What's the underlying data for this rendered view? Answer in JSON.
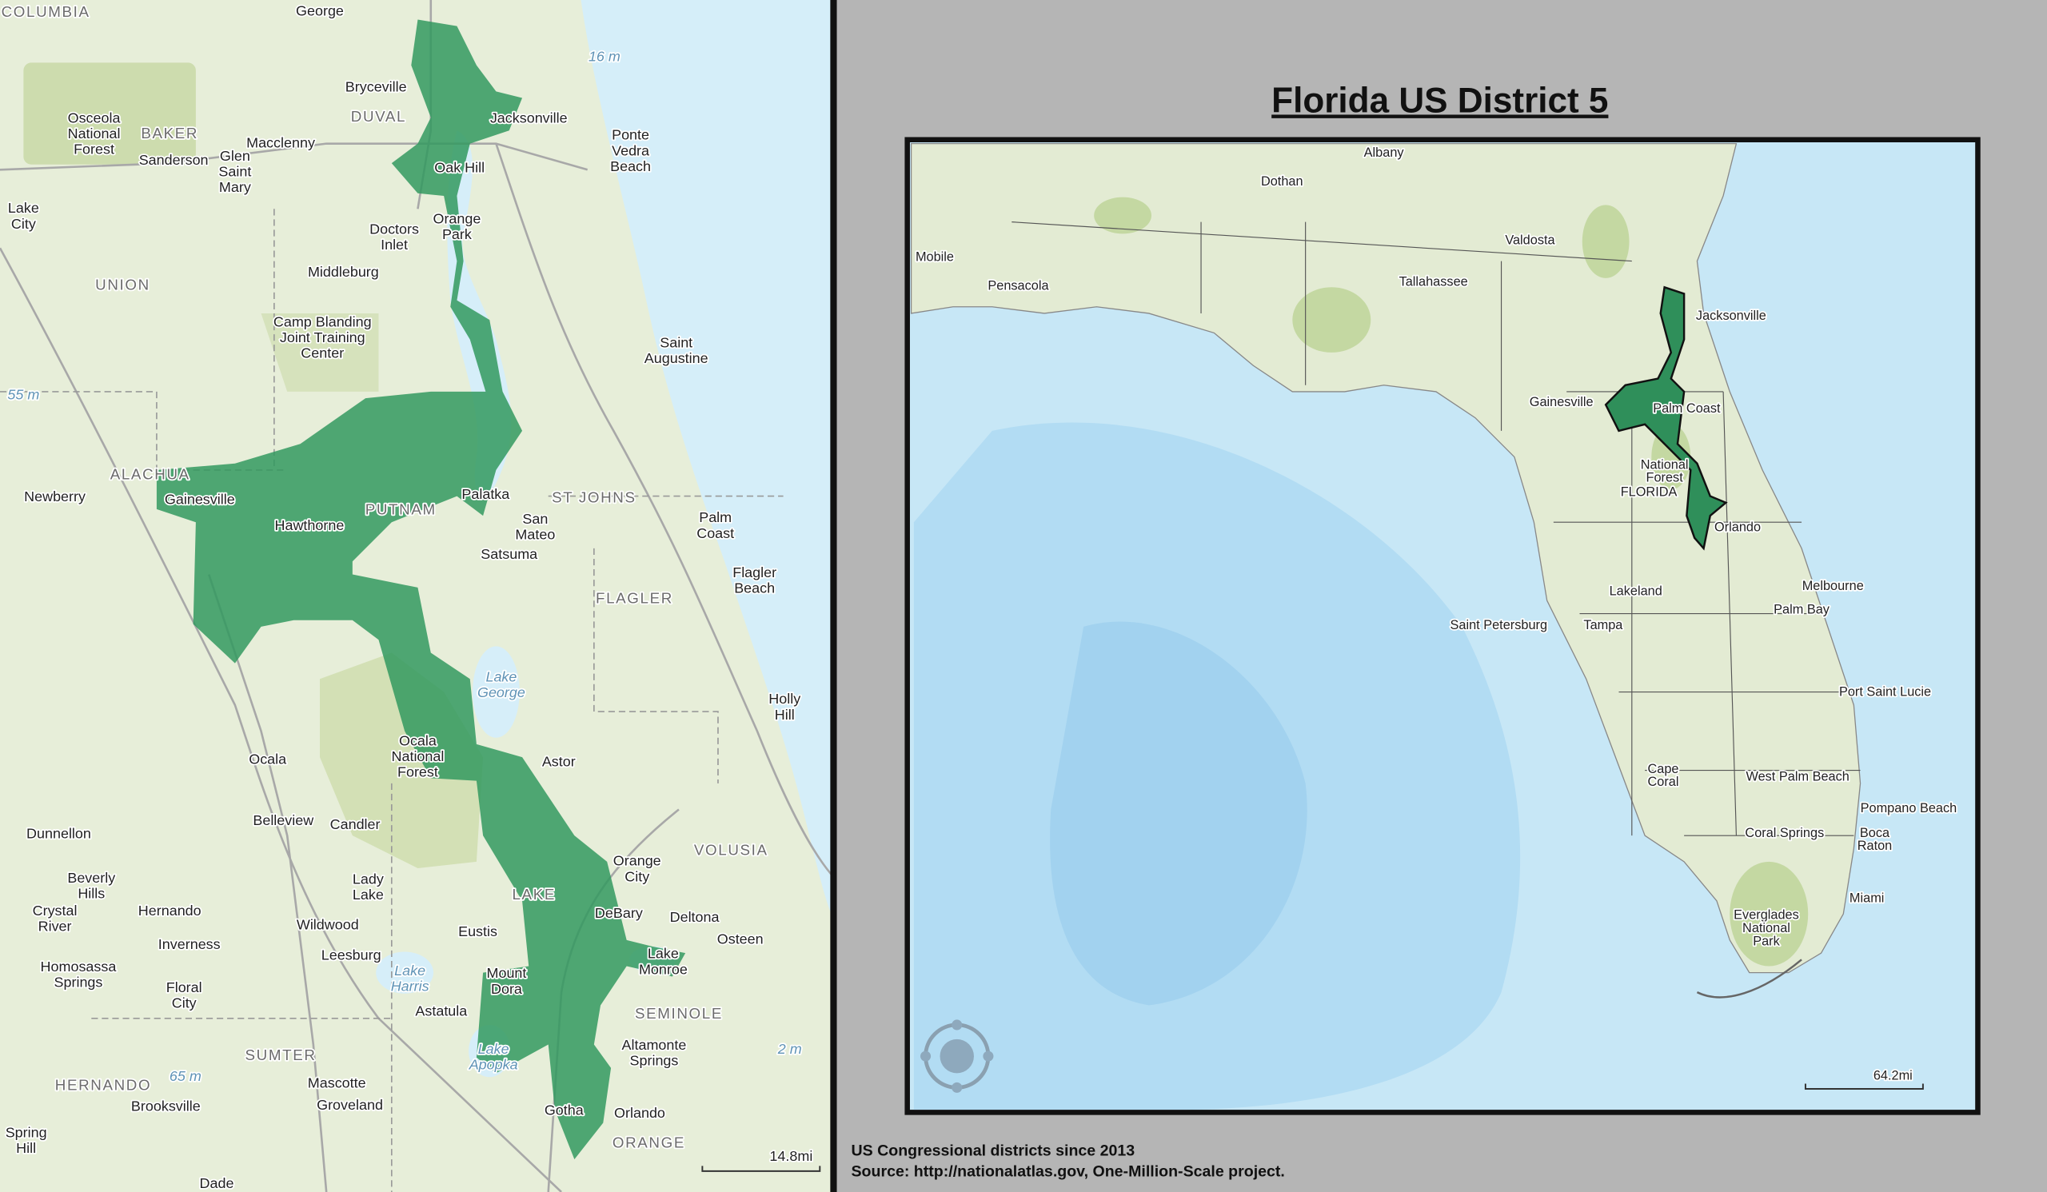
{
  "title": "Florida US District 5",
  "left_map": {
    "scale": "14.8mi",
    "labels": [
      [
        "COLUMBIA"
      ],
      [
        "George"
      ],
      [
        "Osceola",
        "National",
        "Forest"
      ],
      [
        "BAKER"
      ],
      [
        "Bryceville"
      ],
      [
        "DUVAL"
      ],
      [
        "Jacksonville"
      ],
      [
        "16 m"
      ],
      [
        "Ponte",
        "Vedra",
        "Beach"
      ],
      [
        "Macclenny"
      ],
      [
        "Sanderson"
      ],
      [
        "Glen",
        "Saint",
        "Mary"
      ],
      [
        "Oak Hill"
      ],
      [
        "Lake",
        "City"
      ],
      [
        "Orange",
        "Park"
      ],
      [
        "Doctors",
        "Inlet"
      ],
      [
        "Middleburg"
      ],
      [
        "UNION"
      ],
      [
        "Camp Blanding",
        "Joint Training",
        "Center"
      ],
      [
        "Saint",
        "Augustine"
      ],
      [
        "55 m"
      ],
      [
        "ALACHUA"
      ],
      [
        "Newberry"
      ],
      [
        "Gainesville"
      ],
      [
        "PUTNAM"
      ],
      [
        "Palatka"
      ],
      [
        "ST JOHNS"
      ],
      [
        "Palm",
        "Coast"
      ],
      [
        "Hawthorne"
      ],
      [
        "San",
        "Mateo"
      ],
      [
        "Satsuma"
      ],
      [
        "Flagler",
        "Beach"
      ],
      [
        "FLAGLER"
      ],
      [
        "Lake",
        "George"
      ],
      [
        "Holly",
        "Hill"
      ],
      [
        "Ocala",
        "National",
        "Forest"
      ],
      [
        "Astor"
      ],
      [
        "Ocala"
      ],
      [
        "Belleview"
      ],
      [
        "Candler"
      ],
      [
        "Dunnellon"
      ],
      [
        "Orange",
        "City"
      ],
      [
        "VOLUSIA"
      ],
      [
        "Beverly",
        "Hills"
      ],
      [
        "Lady",
        "Lake"
      ],
      [
        "Hernando"
      ],
      [
        "Crystal",
        "River"
      ],
      [
        "LAKE"
      ],
      [
        "DeBary"
      ],
      [
        "Deltona"
      ],
      [
        "Wildwood"
      ],
      [
        "Eustis"
      ],
      [
        "Osteen"
      ],
      [
        "Inverness"
      ],
      [
        "Leesburg"
      ],
      [
        "Lake",
        "Monroe"
      ],
      [
        "Homosassa",
        "Springs"
      ],
      [
        "Floral",
        "City"
      ],
      [
        "Lake",
        "Harris"
      ],
      [
        "Mount",
        "Dora"
      ],
      [
        "Astatula"
      ],
      [
        "SEMINOLE"
      ],
      [
        "Altamonte",
        "Springs"
      ],
      [
        "Lake",
        "Apopka"
      ],
      [
        "2 m"
      ],
      [
        "SUMTER"
      ],
      [
        "HERNANDO"
      ],
      [
        "65 m"
      ],
      [
        "Mascotte"
      ],
      [
        "Groveland"
      ],
      [
        "Brooksville"
      ],
      [
        "Gotha"
      ],
      [
        "Orlando"
      ],
      [
        "Spring",
        "Hill"
      ],
      [
        "ORANGE"
      ],
      [
        "Dade"
      ]
    ]
  },
  "right_map": {
    "scale": "64.2mi",
    "labels": [
      [
        "Albany"
      ],
      [
        "Dothan"
      ],
      [
        "Valdosta"
      ],
      [
        "Mobile"
      ],
      [
        "Pensacola"
      ],
      [
        "Tallahassee"
      ],
      [
        "Jacksonville"
      ],
      [
        "Gainesville"
      ],
      [
        "Palm Coast"
      ],
      [
        "National",
        "Forest"
      ],
      [
        "FLORIDA"
      ],
      [
        "Orlando"
      ],
      [
        "Melbourne"
      ],
      [
        "Lakeland"
      ],
      [
        "Palm Bay"
      ],
      [
        "Saint Petersburg"
      ],
      [
        "Tampa"
      ],
      [
        "Port Saint Lucie"
      ],
      [
        "Cape",
        "Coral"
      ],
      [
        "West Palm Beach"
      ],
      [
        "Pompano Beach"
      ],
      [
        "Boca",
        "Raton"
      ],
      [
        "Coral Springs"
      ],
      [
        "Miami"
      ],
      [
        "Everglades",
        "National",
        "Park"
      ]
    ]
  },
  "footer": [
    "US Congressional districts since 2013",
    "Source: http://nationalatlas.gov, One-Million-Scale project."
  ]
}
